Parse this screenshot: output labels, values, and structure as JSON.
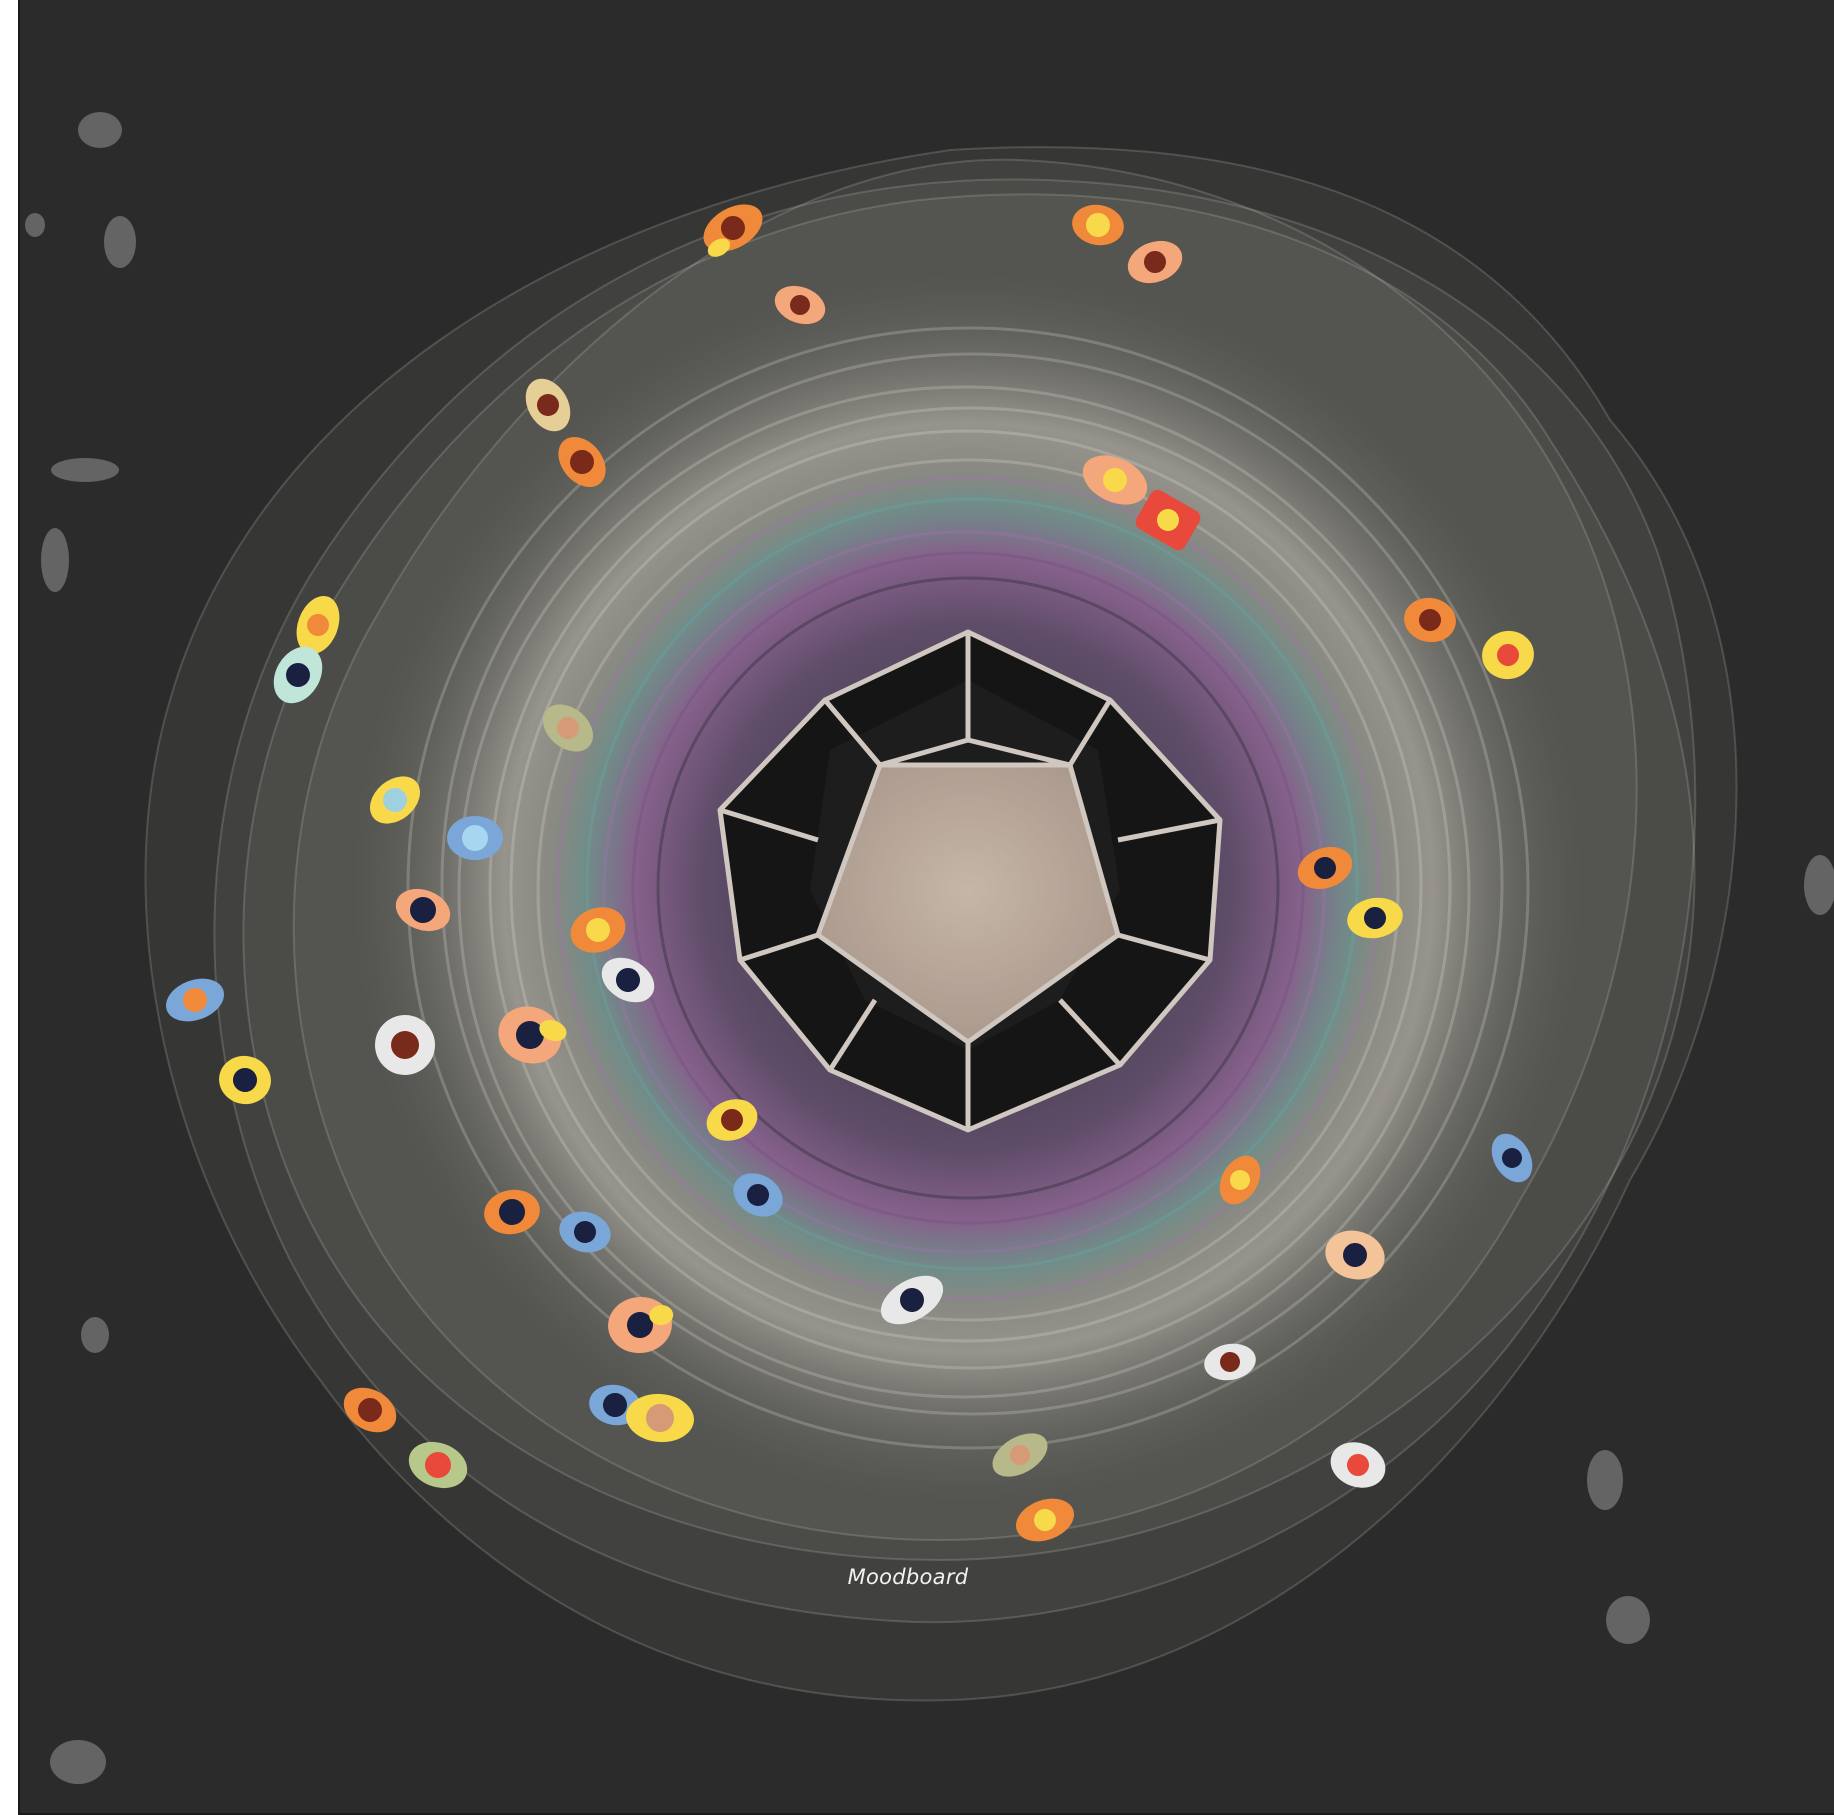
{
  "caption": "Moodboard",
  "colors": {
    "background": "#2b2b2b",
    "chamber_floor": "#b9a89b",
    "chamber_frame": "#cfc7c0",
    "trace_outer": "#e8e4d8",
    "trace_violet": "#9a5fa0",
    "trace_teal": "#5aa3a0"
  },
  "figures": [
    {
      "icon": "person-topdown-icon",
      "shirt": "#f08a3a",
      "head": "#7a2a1a"
    },
    {
      "icon": "person-topdown-icon",
      "shirt": "#f7d94a",
      "head": "#1a2040"
    },
    {
      "icon": "person-topdown-icon",
      "shirt": "#e8e8e8",
      "head": "#1a2040"
    },
    {
      "icon": "person-topdown-icon",
      "shirt": "#7aa6d8",
      "head": "#1a2040"
    }
  ]
}
